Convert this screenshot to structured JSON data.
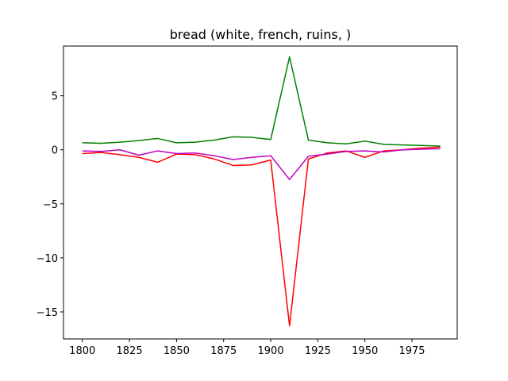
{
  "chart_data": {
    "type": "line",
    "title": "bread (white, french, ruins, )",
    "xlabel": "",
    "ylabel": "",
    "xlim": [
      1790,
      1999
    ],
    "ylim": [
      -17.5,
      9.6
    ],
    "xticks": [
      1800,
      1825,
      1850,
      1875,
      1900,
      1925,
      1950,
      1975
    ],
    "yticks": [
      5,
      0,
      -5,
      -10,
      -15
    ],
    "ytick_labels": [
      "5",
      "0",
      "−5",
      "−10",
      "−15"
    ],
    "grid": false,
    "x": [
      1800,
      1810,
      1820,
      1830,
      1840,
      1850,
      1860,
      1870,
      1880,
      1890,
      1900,
      1910,
      1920,
      1930,
      1940,
      1950,
      1960,
      1970,
      1980,
      1990
    ],
    "series": [
      {
        "color": "#008000",
        "values": [
          0.65,
          0.6,
          0.7,
          0.85,
          1.05,
          0.65,
          0.7,
          0.9,
          1.2,
          1.15,
          0.95,
          8.6,
          0.9,
          0.65,
          0.55,
          0.8,
          0.5,
          0.45,
          0.4,
          0.35
        ]
      },
      {
        "color": "#ff0000",
        "values": [
          -0.35,
          -0.25,
          -0.45,
          -0.7,
          -1.15,
          -0.4,
          -0.45,
          -0.85,
          -1.45,
          -1.4,
          -0.95,
          -16.3,
          -0.85,
          -0.3,
          -0.1,
          -0.7,
          -0.1,
          0.0,
          0.15,
          0.25
        ]
      },
      {
        "color": "#bf00bf",
        "values": [
          -0.1,
          -0.15,
          0.0,
          -0.5,
          -0.1,
          -0.35,
          -0.3,
          -0.55,
          -0.9,
          -0.7,
          -0.55,
          -2.75,
          -0.6,
          -0.4,
          -0.15,
          -0.1,
          -0.2,
          0.0,
          0.05,
          0.1
        ]
      }
    ]
  }
}
